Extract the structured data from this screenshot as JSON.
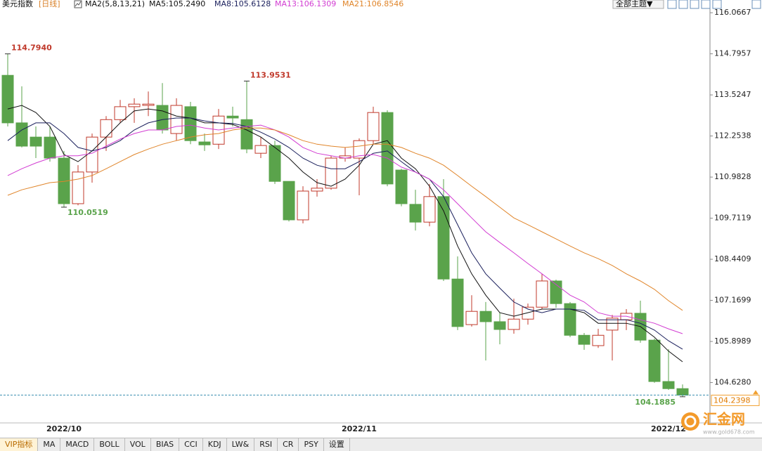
{
  "header": {
    "title": "美元指数",
    "period": "[日线]",
    "indicator": "MA2(5,8,13,21)",
    "theme_button": "全部主题▼"
  },
  "tabs": [
    "VIP指标",
    "MA",
    "MACD",
    "BOLL",
    "VOL",
    "BIAS",
    "CCI",
    "KDJ",
    "LW&",
    "RSI",
    "CR",
    "PSY",
    "设置"
  ],
  "watermark": {
    "name": "汇金网",
    "url": "www.gold678.com"
  },
  "chart_data": {
    "type": "candlestick",
    "categories": [
      null,
      null,
      null,
      null,
      "2022/10",
      null,
      null,
      null,
      null,
      null,
      null,
      null,
      null,
      null,
      null,
      null,
      null,
      null,
      null,
      null,
      null,
      null,
      null,
      null,
      null,
      "2022/11",
      null,
      null,
      null,
      null,
      null,
      null,
      null,
      null,
      null,
      null,
      null,
      null,
      null,
      null,
      null,
      null,
      null,
      null,
      null,
      null,
      null,
      "2022/12",
      null
    ],
    "open": [
      114.13,
      112.66,
      112.22,
      112.22,
      111.57,
      110.16,
      111.14,
      112.22,
      112.76,
      113.16,
      113.2,
      113.2,
      112.33,
      113.16,
      112.07,
      112.0,
      112.87,
      112.76,
      111.72,
      111.96,
      110.85,
      109.66,
      110.55,
      110.64,
      111.57,
      111.57,
      112.11,
      112.98,
      111.2,
      110.14,
      109.59,
      110.38,
      107.83,
      106.42,
      106.83,
      106.51,
      106.27,
      106.59,
      106.96,
      107.77,
      107.07,
      106.09,
      105.77,
      106.25,
      106.57,
      106.77,
      105.94,
      104.66,
      104.44
    ],
    "high": [
      114.794,
      113.79,
      112.55,
      112.55,
      111.79,
      111.35,
      112.33,
      112.87,
      113.37,
      113.42,
      113.63,
      113.89,
      113.42,
      113.31,
      112.33,
      113.09,
      113.16,
      113.9531,
      112.22,
      112.11,
      110.85,
      110.7,
      110.92,
      111.64,
      111.9,
      112.18,
      113.16,
      113.05,
      111.24,
      110.59,
      110.77,
      110.92,
      108.53,
      107.33,
      107.12,
      106.79,
      107.22,
      107.07,
      107.99,
      107.81,
      107.12,
      106.16,
      106.29,
      106.72,
      106.9,
      107.16,
      105.99,
      105.66,
      104.57
    ],
    "low": [
      112.55,
      111.9,
      111.57,
      111.46,
      110.0519,
      110.11,
      110.81,
      111.79,
      112.66,
      112.66,
      112.87,
      112.33,
      112.11,
      112.0,
      111.79,
      111.85,
      112.55,
      111.72,
      111.57,
      110.77,
      109.61,
      109.55,
      110.38,
      110.59,
      111.46,
      110.42,
      112.0,
      110.7,
      110.08,
      109.33,
      109.46,
      107.77,
      106.25,
      106.36,
      105.31,
      105.81,
      106.14,
      106.42,
      106.9,
      106.94,
      106.03,
      105.64,
      105.7,
      105.31,
      106.25,
      105.86,
      104.62,
      104.4,
      104.1885
    ],
    "close": [
      112.66,
      111.94,
      111.94,
      111.57,
      110.16,
      111.14,
      112.22,
      112.76,
      113.16,
      113.24,
      113.24,
      112.44,
      113.2,
      112.11,
      111.98,
      112.87,
      112.81,
      111.85,
      111.96,
      110.85,
      109.66,
      110.55,
      110.64,
      111.57,
      111.64,
      112.11,
      112.98,
      110.77,
      110.16,
      109.59,
      110.38,
      107.83,
      106.36,
      106.83,
      106.51,
      106.27,
      106.59,
      106.96,
      107.77,
      107.07,
      106.09,
      105.81,
      106.09,
      106.62,
      106.77,
      105.94,
      104.66,
      104.44,
      104.2398
    ],
    "up_color": "#c0392b",
    "down_color": "#5aa34b",
    "series": [
      {
        "name": "MA5:105.2490",
        "color": "#111111",
        "values": [
          113.09,
          113.2,
          112.98,
          112.55,
          111.68,
          111.46,
          111.79,
          112.22,
          112.66,
          113.03,
          113.09,
          113.03,
          112.87,
          112.81,
          112.66,
          112.66,
          112.61,
          112.44,
          112.22,
          111.9,
          111.57,
          111.14,
          110.81,
          110.7,
          110.92,
          111.35,
          112.0,
          112.11,
          111.57,
          111.24,
          110.7,
          109.94,
          108.85,
          107.99,
          107.33,
          106.79,
          106.68,
          106.79,
          106.9,
          106.9,
          106.9,
          106.79,
          106.46,
          106.46,
          106.46,
          106.36,
          106.03,
          105.6,
          105.27
        ]
      },
      {
        "name": "MA8:105.6128",
        "color": "#1a1f5c",
        "values": [
          112.11,
          112.44,
          112.66,
          112.66,
          112.33,
          111.9,
          111.79,
          111.9,
          112.11,
          112.44,
          112.66,
          112.76,
          112.81,
          112.81,
          112.72,
          112.66,
          112.64,
          112.55,
          112.37,
          112.16,
          111.9,
          111.57,
          111.35,
          111.24,
          111.24,
          111.46,
          111.72,
          111.79,
          111.46,
          111.14,
          110.92,
          110.38,
          109.51,
          108.64,
          107.99,
          107.55,
          107.12,
          106.9,
          106.79,
          106.9,
          106.9,
          106.86,
          106.57,
          106.57,
          106.57,
          106.46,
          106.25,
          105.92,
          105.66
        ]
      },
      {
        "name": "MA13:106.1309",
        "color": "#d23cd2",
        "values": [
          111.03,
          111.24,
          111.42,
          111.57,
          111.64,
          111.64,
          111.72,
          111.94,
          112.16,
          112.33,
          112.44,
          112.44,
          112.55,
          112.59,
          112.5,
          112.44,
          112.5,
          112.55,
          112.59,
          112.44,
          112.22,
          111.9,
          111.72,
          111.64,
          111.57,
          111.64,
          111.68,
          111.57,
          111.29,
          111.14,
          110.92,
          110.59,
          110.16,
          109.72,
          109.29,
          108.96,
          108.64,
          108.31,
          107.99,
          107.66,
          107.33,
          107.12,
          106.79,
          106.68,
          106.68,
          106.57,
          106.46,
          106.29,
          106.14
        ]
      },
      {
        "name": "MA21:106.8546",
        "color": "#e0852a",
        "values": [
          110.42,
          110.59,
          110.7,
          110.81,
          110.85,
          110.92,
          111.03,
          111.24,
          111.46,
          111.68,
          111.85,
          112.0,
          112.11,
          112.22,
          112.29,
          112.33,
          112.44,
          112.5,
          112.5,
          112.44,
          112.29,
          112.11,
          112.0,
          111.94,
          111.9,
          111.94,
          112.0,
          112.0,
          111.9,
          111.72,
          111.57,
          111.35,
          111.03,
          110.7,
          110.38,
          110.05,
          109.72,
          109.51,
          109.29,
          109.07,
          108.85,
          108.64,
          108.46,
          108.25,
          107.99,
          107.77,
          107.51,
          107.16,
          106.86
        ]
      }
    ],
    "annotations": [
      {
        "value": 114.794,
        "label": "114.7940"
      },
      113.9531,
      110.0519,
      104.1885
    ],
    "ylim": [
      103.38,
      116.46
    ],
    "yticks": [
      116.0667,
      114.7957,
      113.5247,
      112.2538,
      110.9828,
      109.7119,
      108.4409,
      107.1699,
      105.8989,
      {
        "value": 104.628,
        "label": "104.6280"
      }
    ],
    "grid": false
  }
}
